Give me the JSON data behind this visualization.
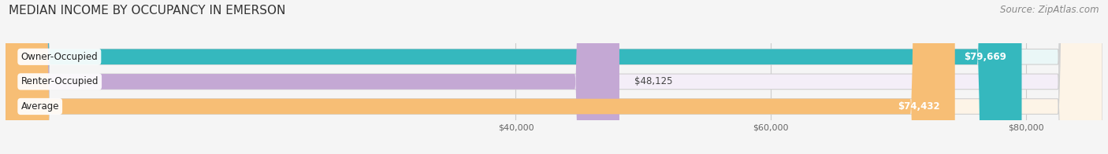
{
  "title": "MEDIAN INCOME BY OCCUPANCY IN EMERSON",
  "source": "Source: ZipAtlas.com",
  "categories": [
    "Owner-Occupied",
    "Renter-Occupied",
    "Average"
  ],
  "values": [
    79669,
    48125,
    74432
  ],
  "labels": [
    "$79,669",
    "$48,125",
    "$74,432"
  ],
  "bar_colors": [
    "#35b8be",
    "#c4a8d4",
    "#f7be75"
  ],
  "bar_bg_colors": [
    "#eaf7f7",
    "#f4eef8",
    "#fdf4e7"
  ],
  "xlim_min": 0,
  "xlim_max": 86000,
  "xticks": [
    40000,
    60000,
    80000
  ],
  "xtick_labels": [
    "$40,000",
    "$60,000",
    "$80,000"
  ],
  "title_fontsize": 11,
  "source_fontsize": 8.5,
  "label_fontsize": 8.5,
  "cat_fontsize": 8.5,
  "bar_height": 0.62,
  "background_color": "#f5f5f5",
  "grid_color": "#cccccc",
  "label_white_threshold": 60000
}
